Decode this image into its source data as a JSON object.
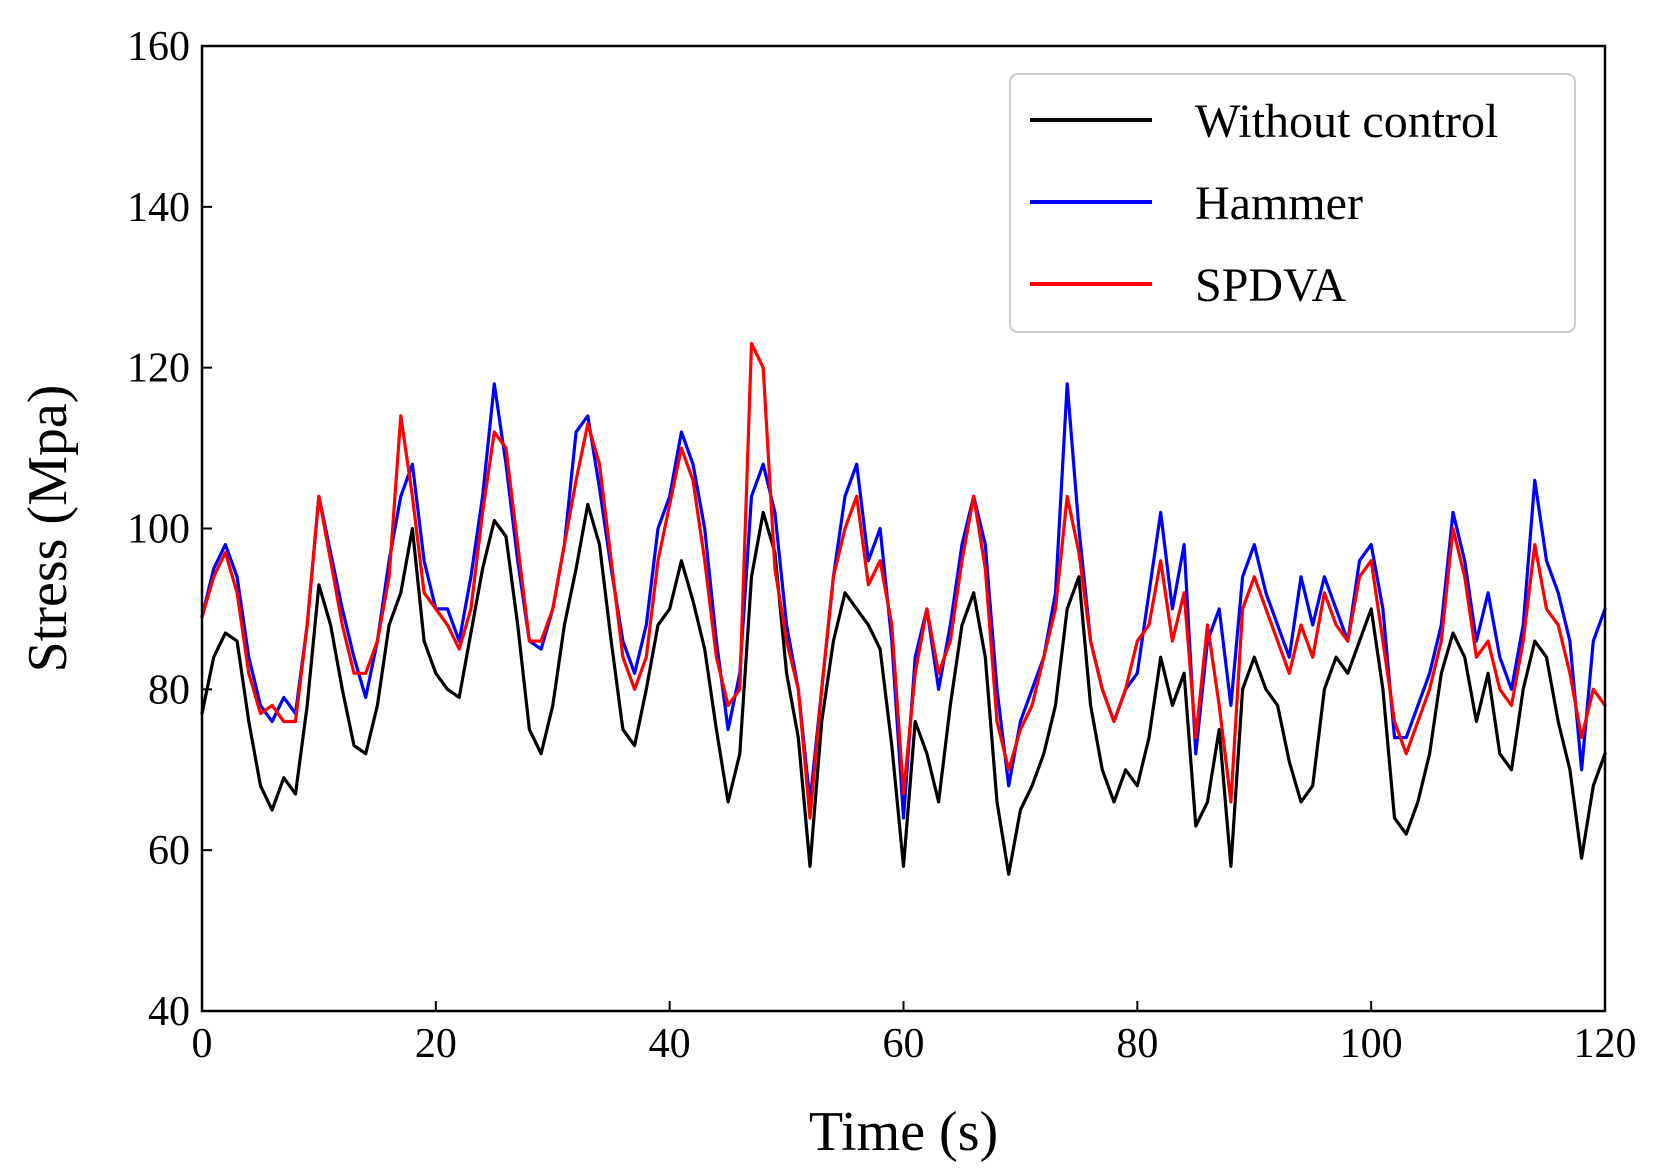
{
  "chart_data": {
    "type": "line",
    "title": "",
    "xlabel": "Time (s)",
    "ylabel": "Stress (Mpa)",
    "xlim": [
      0,
      120
    ],
    "ylim": [
      40,
      160
    ],
    "xticks": [
      0,
      20,
      40,
      60,
      80,
      100,
      120
    ],
    "yticks": [
      40,
      60,
      80,
      100,
      120,
      140,
      160
    ],
    "grid": false,
    "legend_position": "top-right",
    "series": [
      {
        "name": "Without control",
        "color": "#000000",
        "x": [
          0,
          1,
          2,
          3,
          4,
          5,
          6,
          7,
          8,
          9,
          10,
          11,
          12,
          13,
          14,
          15,
          16,
          17,
          18,
          19,
          20,
          21,
          22,
          23,
          24,
          25,
          26,
          27,
          28,
          29,
          30,
          31,
          32,
          33,
          34,
          35,
          36,
          37,
          38,
          39,
          40,
          41,
          42,
          43,
          44,
          45,
          46,
          47,
          48,
          49,
          50,
          51,
          52,
          53,
          54,
          55,
          56,
          57,
          58,
          59,
          60,
          61,
          62,
          63,
          64,
          65,
          66,
          67,
          68,
          69,
          70,
          71,
          72,
          73,
          74,
          75,
          76,
          77,
          78,
          79,
          80,
          81,
          82,
          83,
          84,
          85,
          86,
          87,
          88,
          89,
          90,
          91,
          92,
          93,
          94,
          95,
          96,
          97,
          98,
          99,
          100,
          101,
          102,
          103,
          104,
          105,
          106,
          107,
          108,
          109,
          110,
          111,
          112,
          113,
          114,
          115,
          116,
          117,
          118,
          119,
          120
        ],
        "y": [
          77,
          84,
          87,
          86,
          76,
          68,
          65,
          69,
          67,
          78,
          93,
          88,
          80,
          73,
          72,
          78,
          88,
          92,
          100,
          86,
          82,
          80,
          79,
          87,
          95,
          101,
          99,
          88,
          75,
          72,
          78,
          88,
          95,
          103,
          98,
          86,
          75,
          73,
          80,
          88,
          90,
          96,
          91,
          85,
          75,
          66,
          72,
          94,
          102,
          97,
          82,
          74,
          58,
          76,
          86,
          92,
          90,
          88,
          85,
          73,
          58,
          76,
          72,
          66,
          78,
          88,
          92,
          84,
          66,
          57,
          65,
          68,
          72,
          78,
          90,
          94,
          78,
          70,
          66,
          70,
          68,
          74,
          84,
          78,
          82,
          63,
          66,
          75,
          58,
          80,
          84,
          80,
          78,
          71,
          66,
          68,
          80,
          84,
          82,
          86,
          90,
          80,
          64,
          62,
          66,
          72,
          82,
          87,
          84,
          76,
          82,
          72,
          70,
          80,
          86,
          84,
          76,
          70,
          59,
          68,
          72
        ]
      },
      {
        "name": "Hammer",
        "color": "#0000ff",
        "x": [
          0,
          1,
          2,
          3,
          4,
          5,
          6,
          7,
          8,
          9,
          10,
          11,
          12,
          13,
          14,
          15,
          16,
          17,
          18,
          19,
          20,
          21,
          22,
          23,
          24,
          25,
          26,
          27,
          28,
          29,
          30,
          31,
          32,
          33,
          34,
          35,
          36,
          37,
          38,
          39,
          40,
          41,
          42,
          43,
          44,
          45,
          46,
          47,
          48,
          49,
          50,
          51,
          52,
          53,
          54,
          55,
          56,
          57,
          58,
          59,
          60,
          61,
          62,
          63,
          64,
          65,
          66,
          67,
          68,
          69,
          70,
          71,
          72,
          73,
          74,
          75,
          76,
          77,
          78,
          79,
          80,
          81,
          82,
          83,
          84,
          85,
          86,
          87,
          88,
          89,
          90,
          91,
          92,
          93,
          94,
          95,
          96,
          97,
          98,
          99,
          100,
          101,
          102,
          103,
          104,
          105,
          106,
          107,
          108,
          109,
          110,
          111,
          112,
          113,
          114,
          115,
          116,
          117,
          118,
          119,
          120
        ],
        "y": [
          89,
          95,
          98,
          94,
          84,
          78,
          76,
          79,
          77,
          88,
          104,
          97,
          90,
          84,
          79,
          86,
          96,
          104,
          108,
          96,
          90,
          90,
          86,
          94,
          104,
          118,
          108,
          96,
          86,
          85,
          90,
          98,
          112,
          114,
          105,
          95,
          86,
          82,
          88,
          100,
          104,
          112,
          108,
          100,
          86,
          75,
          82,
          104,
          108,
          102,
          88,
          80,
          66,
          80,
          94,
          104,
          108,
          96,
          100,
          86,
          64,
          84,
          90,
          80,
          88,
          98,
          104,
          98,
          80,
          68,
          76,
          80,
          84,
          92,
          118,
          100,
          86,
          80,
          76,
          80,
          82,
          92,
          102,
          90,
          98,
          72,
          86,
          90,
          78,
          94,
          98,
          92,
          88,
          84,
          94,
          88,
          94,
          90,
          86,
          96,
          98,
          90,
          74,
          74,
          78,
          82,
          88,
          102,
          96,
          86,
          92,
          84,
          80,
          88,
          106,
          96,
          92,
          86,
          70,
          86,
          90
        ]
      },
      {
        "name": "SPDVA",
        "color": "#ff0000",
        "x": [
          0,
          1,
          2,
          3,
          4,
          5,
          6,
          7,
          8,
          9,
          10,
          11,
          12,
          13,
          14,
          15,
          16,
          17,
          18,
          19,
          20,
          21,
          22,
          23,
          24,
          25,
          26,
          27,
          28,
          29,
          30,
          31,
          32,
          33,
          34,
          35,
          36,
          37,
          38,
          39,
          40,
          41,
          42,
          43,
          44,
          45,
          46,
          47,
          48,
          49,
          50,
          51,
          52,
          53,
          54,
          55,
          56,
          57,
          58,
          59,
          60,
          61,
          62,
          63,
          64,
          65,
          66,
          67,
          68,
          69,
          70,
          71,
          72,
          73,
          74,
          75,
          76,
          77,
          78,
          79,
          80,
          81,
          82,
          83,
          84,
          85,
          86,
          87,
          88,
          89,
          90,
          91,
          92,
          93,
          94,
          95,
          96,
          97,
          98,
          99,
          100,
          101,
          102,
          103,
          104,
          105,
          106,
          107,
          108,
          109,
          110,
          111,
          112,
          113,
          114,
          115,
          116,
          117,
          118,
          119,
          120
        ],
        "y": [
          89,
          94,
          97,
          92,
          82,
          77,
          78,
          76,
          76,
          88,
          104,
          96,
          88,
          82,
          82,
          86,
          94,
          114,
          104,
          92,
          90,
          88,
          85,
          90,
          102,
          112,
          110,
          98,
          86,
          86,
          90,
          98,
          106,
          113,
          108,
          96,
          84,
          80,
          84,
          96,
          103,
          110,
          106,
          96,
          84,
          78,
          80,
          123,
          120,
          95,
          86,
          80,
          64,
          80,
          94,
          100,
          104,
          93,
          96,
          88,
          67,
          82,
          90,
          82,
          86,
          96,
          104,
          95,
          76,
          70,
          75,
          78,
          84,
          90,
          104,
          97,
          86,
          80,
          76,
          80,
          86,
          88,
          96,
          86,
          92,
          74,
          88,
          78,
          66,
          90,
          94,
          90,
          86,
          82,
          88,
          84,
          92,
          88,
          86,
          94,
          96,
          86,
          76,
          72,
          76,
          80,
          86,
          100,
          94,
          84,
          86,
          80,
          78,
          86,
          98,
          90,
          88,
          82,
          74,
          80,
          78
        ]
      }
    ]
  }
}
